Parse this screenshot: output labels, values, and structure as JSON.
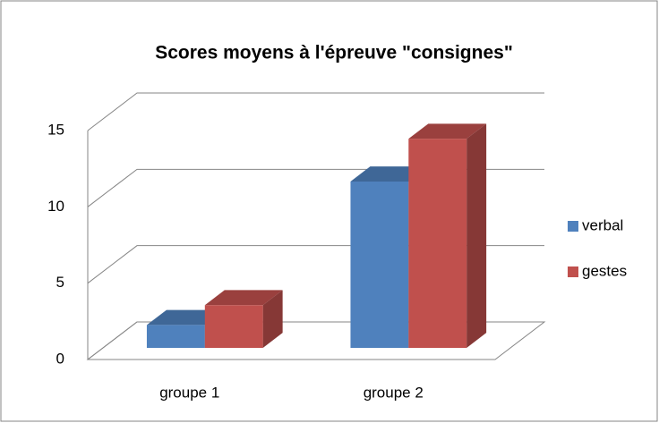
{
  "chart_data": {
    "type": "bar",
    "title": "Scores moyens à l'épreuve \"consignes\"",
    "categories": [
      "groupe 1",
      "groupe 2"
    ],
    "series": [
      {
        "name": "verbal",
        "color": "#4f81bd",
        "values": [
          1.5,
          10.9
        ]
      },
      {
        "name": "gestes",
        "color": "#c0504d",
        "values": [
          2.8,
          13.7
        ]
      }
    ],
    "ylim": [
      0,
      15
    ],
    "yticks": [
      0,
      5,
      10,
      15
    ],
    "grid": true,
    "legend": "right"
  }
}
